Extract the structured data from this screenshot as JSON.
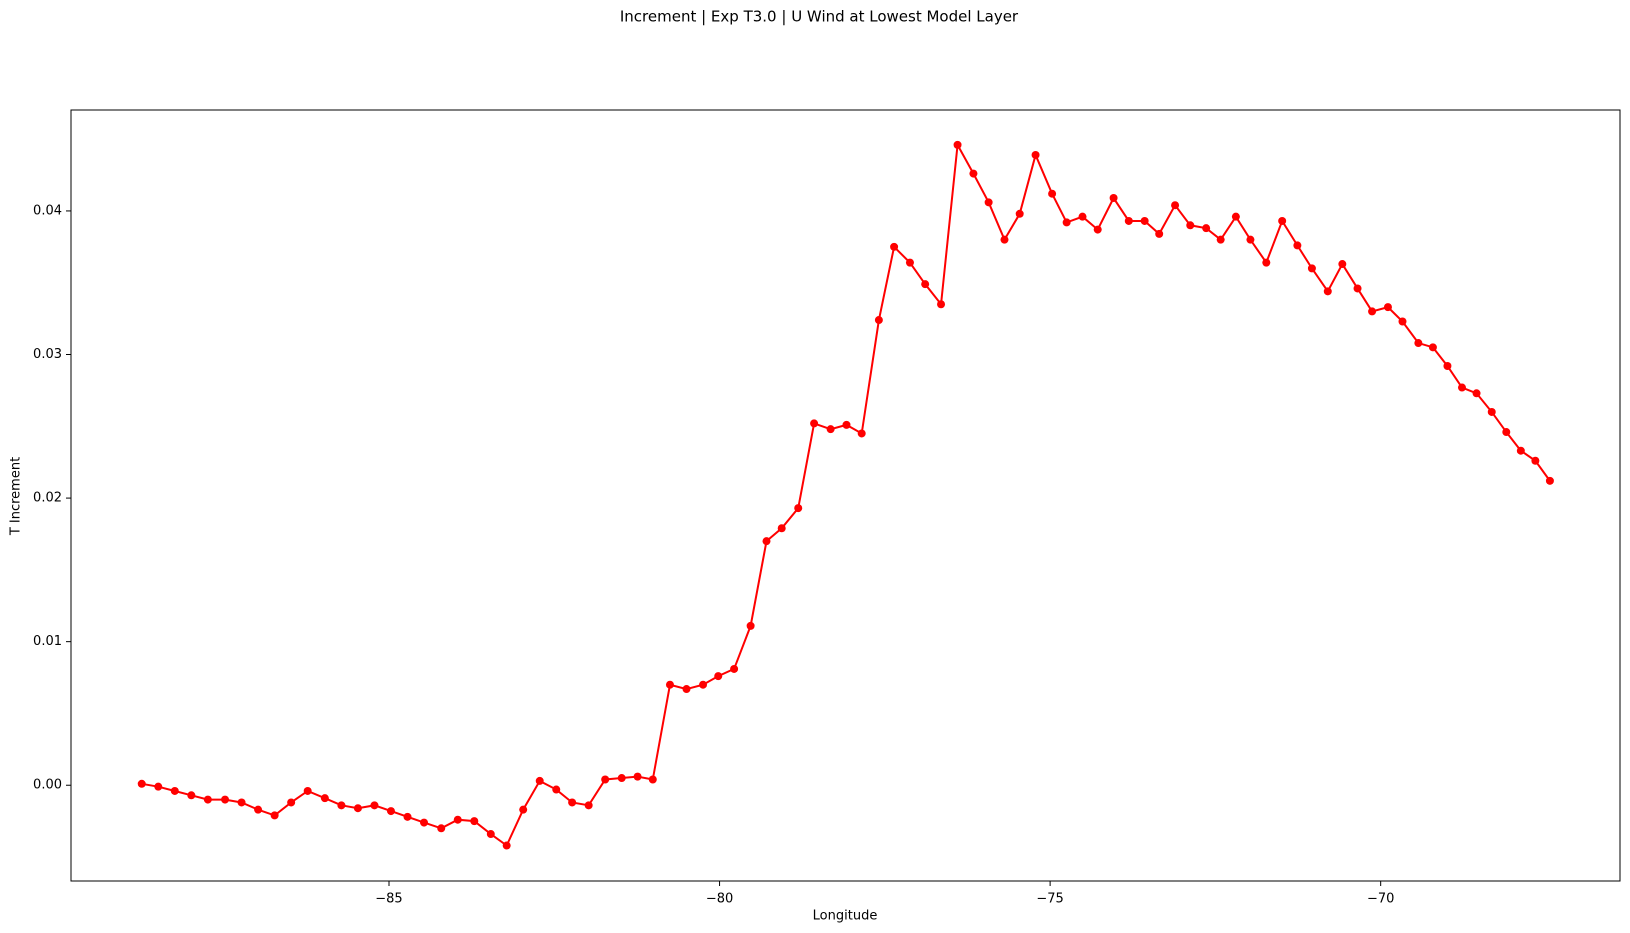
{
  "chart_data": {
    "type": "line",
    "title": "Increment | Exp T3.0 | U Wind at Lowest Model Layer",
    "xlabel": "Longitude",
    "ylabel": "T Increment",
    "x": [
      -88.74,
      -88.49,
      -88.24,
      -87.99,
      -87.74,
      -87.48,
      -87.23,
      -86.98,
      -86.73,
      -86.48,
      -86.23,
      -85.97,
      -85.72,
      -85.47,
      -85.22,
      -84.97,
      -84.72,
      -84.47,
      -84.21,
      -83.96,
      -83.71,
      -83.46,
      -83.22,
      -82.97,
      -82.72,
      -82.47,
      -82.23,
      -81.98,
      -81.73,
      -81.48,
      -81.24,
      -81.01,
      -80.75,
      -80.5,
      -80.25,
      -80.02,
      -79.78,
      -79.53,
      -79.29,
      -79.06,
      -78.81,
      -78.57,
      -78.32,
      -78.08,
      -77.85,
      -77.59,
      -77.36,
      -77.12,
      -76.89,
      -76.65,
      -76.4,
      -76.16,
      -75.93,
      -75.69,
      -75.46,
      -75.22,
      -74.97,
      -74.75,
      -74.51,
      -74.28,
      -74.04,
      -73.81,
      -73.57,
      -73.35,
      -73.11,
      -72.88,
      -72.64,
      -72.42,
      -72.19,
      -71.97,
      -71.73,
      -71.49,
      -71.26,
      -71.04,
      -70.8,
      -70.58,
      -70.35,
      -70.13,
      -69.89,
      -69.67,
      -69.43,
      -69.21,
      -68.99,
      -68.77,
      -68.55,
      -68.32,
      -68.1,
      -67.88,
      -67.66,
      -67.44
    ],
    "series": [
      {
        "name": "T Increment",
        "color": "#ff0000",
        "values": [
          0.0001,
          -0.0001,
          -0.0004,
          -0.0007,
          -0.001,
          -0.001,
          -0.0012,
          -0.0017,
          -0.0021,
          -0.0012,
          -0.0004,
          -0.0009,
          -0.0014,
          -0.0016,
          -0.0014,
          -0.0018,
          -0.0022,
          -0.0026,
          -0.003,
          -0.0024,
          -0.0025,
          -0.0034,
          -0.0042,
          -0.0017,
          0.0003,
          -0.0003,
          -0.0012,
          -0.0014,
          0.0004,
          0.0005,
          0.0006,
          0.0004,
          0.007,
          0.0067,
          0.007,
          0.0076,
          0.0081,
          0.0111,
          0.017,
          0.0179,
          0.0193,
          0.0252,
          0.0248,
          0.0251,
          0.0245,
          0.0324,
          0.0375,
          0.0364,
          0.0349,
          0.0335,
          0.0446,
          0.0426,
          0.0406,
          0.038,
          0.0398,
          0.0439,
          0.0412,
          0.0392,
          0.0396,
          0.0387,
          0.0409,
          0.0393,
          0.0393,
          0.0384,
          0.0404,
          0.039,
          0.0388,
          0.038,
          0.0396,
          0.038,
          0.0364,
          0.0393,
          0.0376,
          0.036,
          0.0344,
          0.0363,
          0.0346,
          0.033,
          0.0333,
          0.0323,
          0.0308,
          0.0305,
          0.0292,
          0.0277,
          0.0273,
          0.026,
          0.0246,
          0.0233,
          0.0226,
          0.0212
        ]
      }
    ],
    "xlim": [
      -89.81,
      -66.38
    ],
    "ylim": [
      -0.00667,
      0.04703
    ],
    "xticks": [
      {
        "value": -85,
        "label": "−85"
      },
      {
        "value": -80,
        "label": "−80"
      },
      {
        "value": -75,
        "label": "−75"
      },
      {
        "value": -70,
        "label": "−70"
      }
    ],
    "yticks": [
      {
        "value": 0,
        "label": "0.00"
      },
      {
        "value": 0.01,
        "label": "0.01"
      },
      {
        "value": 0.02,
        "label": "0.02"
      },
      {
        "value": 0.03,
        "label": "0.03"
      },
      {
        "value": 0.04,
        "label": "0.04"
      }
    ]
  }
}
